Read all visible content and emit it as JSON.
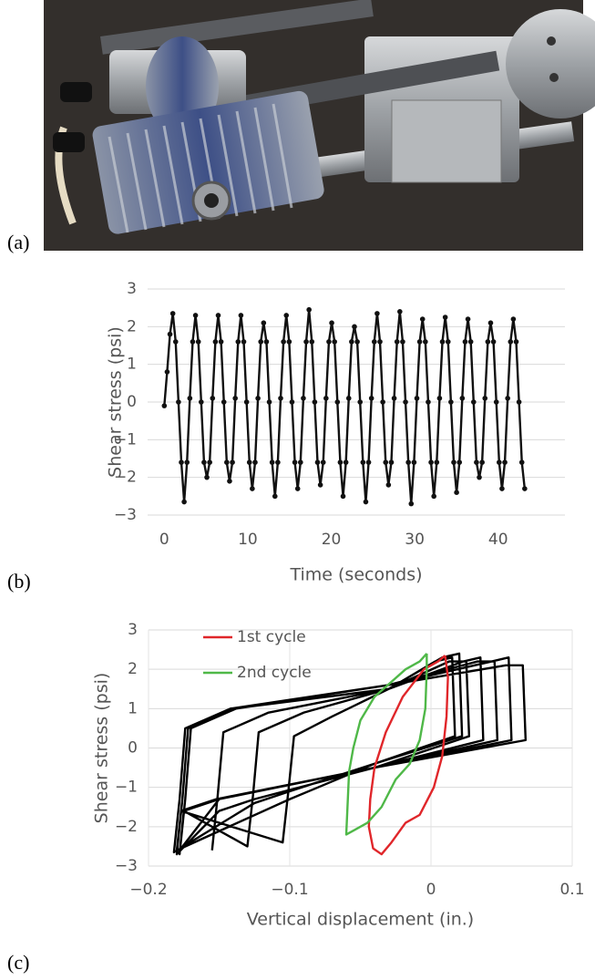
{
  "panel_labels": [
    "(a)",
    "(b)",
    "(c)"
  ],
  "chart_data": [
    {
      "type": "line",
      "y_label": "Shear stress (psi)",
      "x_label": "Time (seconds)",
      "xlim": [
        -2,
        48
      ],
      "xticks": [
        0,
        10,
        20,
        30,
        40
      ],
      "ylim": [
        -3,
        3
      ],
      "yticks": [
        {
          "value": -3,
          "label": "−3"
        },
        {
          "value": -2,
          "label": "−2"
        },
        {
          "value": -1,
          "label": "−1"
        },
        0,
        1,
        2,
        3
      ],
      "grid": [
        "y"
      ],
      "markers": true,
      "series": [
        {
          "color": "#111111",
          "x": [
            0,
            0.34,
            0.68,
            1.02,
            1.36,
            1.7,
            2.04,
            2.38,
            2.72,
            3.06,
            3.4,
            3.74,
            4.08,
            4.42,
            4.76,
            5.1,
            5.44,
            5.78,
            6.12,
            6.46,
            6.8,
            7.14,
            7.48,
            7.82,
            8.16,
            8.5,
            8.84,
            9.18,
            9.52,
            9.86,
            10.2,
            10.54,
            10.88,
            11.22,
            11.56,
            11.9,
            12.24,
            12.58,
            12.92,
            13.26,
            13.6,
            13.94,
            14.28,
            14.62,
            14.96,
            15.3,
            15.64,
            15.98,
            16.32,
            16.66,
            17,
            17.34,
            17.68,
            18.02,
            18.36,
            18.7,
            19.04,
            19.38,
            19.72,
            20.06,
            20.4,
            20.74,
            21.08,
            21.42,
            21.76,
            22.1,
            22.44,
            22.78,
            23.12,
            23.46,
            23.8,
            24.14,
            24.48,
            24.82,
            25.16,
            25.5,
            25.84,
            26.18,
            26.52,
            26.86,
            27.2,
            27.54,
            27.88,
            28.22,
            28.56,
            28.9,
            29.24,
            29.58,
            29.92,
            30.26,
            30.6,
            30.94,
            31.28,
            31.62,
            31.96,
            32.3,
            32.64,
            32.98,
            33.32,
            33.66,
            34,
            34.34,
            34.68,
            35.02,
            35.36,
            35.7,
            36.04,
            36.38,
            36.72,
            37.06,
            37.4,
            37.74,
            38.08,
            38.42,
            38.76,
            39.1,
            39.44,
            39.78,
            40.12,
            40.46,
            40.8,
            41.14,
            41.48,
            41.82,
            42.16,
            42.5,
            42.84,
            43.18
          ],
          "values": [
            -0.1,
            0.8,
            1.8,
            2.35,
            1.6,
            0,
            -1.6,
            -2.65,
            -1.6,
            0.1,
            1.6,
            2.3,
            1.6,
            0,
            -1.6,
            -2.0,
            -1.6,
            0.1,
            1.6,
            2.3,
            1.6,
            0,
            -1.6,
            -2.1,
            -1.6,
            0.1,
            1.6,
            2.3,
            1.6,
            0,
            -1.6,
            -2.3,
            -1.6,
            0.1,
            1.6,
            2.1,
            1.6,
            0,
            -1.6,
            -2.5,
            -1.6,
            0.1,
            1.6,
            2.3,
            1.6,
            0,
            -1.6,
            -2.3,
            -1.6,
            0.1,
            1.6,
            2.45,
            1.6,
            0,
            -1.6,
            -2.2,
            -1.6,
            0.1,
            1.6,
            2.1,
            1.6,
            0,
            -1.6,
            -2.5,
            -1.6,
            0.1,
            1.6,
            2.0,
            1.6,
            0,
            -1.6,
            -2.65,
            -1.6,
            0.1,
            1.6,
            2.35,
            1.6,
            0,
            -1.6,
            -2.2,
            -1.6,
            0.1,
            1.6,
            2.4,
            1.6,
            0,
            -1.6,
            -2.7,
            -1.6,
            0.1,
            1.6,
            2.2,
            1.6,
            0,
            -1.6,
            -2.5,
            -1.6,
            0.1,
            1.6,
            2.25,
            1.6,
            0,
            -1.6,
            -2.4,
            -1.6,
            0.1,
            1.6,
            2.2,
            1.6,
            0,
            -1.6,
            -2.0,
            -1.6,
            0.1,
            1.6,
            2.1,
            1.6,
            0,
            -1.6,
            -2.3,
            -1.6,
            0.1,
            1.6,
            2.2,
            1.6,
            0,
            -1.6,
            -2.3
          ]
        }
      ]
    },
    {
      "type": "line",
      "y_label": "Shear stress (psi)",
      "x_label": "Vertical displacement (in.)",
      "xlim": [
        -0.2,
        0.1
      ],
      "xticks": [
        {
          "value": -0.2,
          "label": "−0.2"
        },
        {
          "value": -0.1,
          "label": "−0.1"
        },
        0,
        0.1
      ],
      "ylim": [
        -3,
        3
      ],
      "yticks": [
        {
          "value": -3,
          "label": "−3"
        },
        {
          "value": -2,
          "label": "−2"
        },
        {
          "value": -1,
          "label": "−1"
        },
        0,
        1,
        2,
        3
      ],
      "grid": [
        "x",
        "y"
      ],
      "markers": false,
      "legend": "upper left",
      "series": [
        {
          "color": "#000000",
          "x": [
            -0.155,
            -0.151,
            -0.147,
            -0.115,
            -0.03,
            0.013,
            0.025,
            0.027,
            -0.04,
            -0.125,
            -0.15,
            -0.18,
            -0.176,
            -0.172,
            -0.14,
            -0.03,
            0.023,
            0.035,
            0.037,
            -0.04,
            -0.15,
            -0.175,
            -0.13,
            -0.126,
            -0.122,
            -0.09,
            -0.03,
            0.003,
            0.015,
            0.017,
            -0.04,
            -0.1,
            -0.125,
            -0.182,
            -0.178,
            -0.174,
            -0.142,
            -0.03,
            0.033,
            0.045,
            0.047,
            -0.04,
            -0.152,
            -0.177,
            -0.105,
            -0.101,
            -0.097,
            -0.07,
            -0.03,
            0.008,
            0.02,
            0.022,
            -0.04,
            -0.08,
            -0.1,
            -0.18,
            -0.176,
            -0.172,
            -0.14,
            -0.03,
            0.043,
            0.055,
            0.057,
            -0.04,
            -0.15,
            -0.175,
            -0.178,
            -0.174,
            -0.17,
            -0.138,
            -0.03,
            0.053,
            0.065,
            0.067,
            -0.04,
            -0.15,
            -0.178
          ],
          "values": [
            -2.6,
            -1.2,
            0.4,
            0.9,
            1.5,
            2.2,
            2.2,
            0.3,
            -0.5,
            -1.3,
            -1.6,
            -2.7,
            -1.3,
            0.5,
            1.0,
            1.5,
            2.2,
            2.3,
            0.2,
            -0.5,
            -1.3,
            -1.6,
            -2.5,
            -1.2,
            0.4,
            0.9,
            1.5,
            2.2,
            2.3,
            0.3,
            -0.4,
            -1.1,
            -1.4,
            -2.65,
            -1.3,
            0.5,
            1.0,
            1.6,
            2.2,
            2.2,
            0.2,
            -0.5,
            -1.3,
            -1.6,
            -2.4,
            -1.1,
            0.3,
            0.8,
            1.5,
            2.3,
            2.4,
            0.3,
            -0.4,
            -1.0,
            -1.3,
            -2.6,
            -1.3,
            0.5,
            1.0,
            1.6,
            2.2,
            2.3,
            0.2,
            -0.5,
            -1.3,
            -1.6,
            -2.7,
            -1.3,
            0.5,
            1.0,
            1.6,
            2.1,
            2.1,
            0.2,
            -0.5,
            -1.3,
            -2.6
          ]
        },
        {
          "name": "1st cycle",
          "color": "#e0262a",
          "x": [
            0.01,
            0.005,
            -0.005,
            -0.02,
            -0.032,
            -0.04,
            -0.043,
            -0.044,
            -0.041,
            -0.035,
            -0.028,
            -0.018,
            -0.008,
            0.002,
            0.008,
            0.011,
            0.012,
            0.01
          ],
          "values": [
            2.35,
            2.2,
            2.0,
            1.3,
            0.4,
            -0.5,
            -1.3,
            -2.0,
            -2.55,
            -2.7,
            -2.4,
            -1.9,
            -1.7,
            -1.0,
            -0.2,
            0.8,
            1.8,
            2.35
          ]
        },
        {
          "name": "2nd cycle",
          "color": "#4fb848",
          "x": [
            -0.003,
            -0.008,
            -0.018,
            -0.04,
            -0.05,
            -0.055,
            -0.058,
            -0.06,
            -0.055,
            -0.045,
            -0.035,
            -0.025,
            -0.015,
            -0.008,
            -0.004,
            -0.003,
            -0.003
          ],
          "values": [
            2.4,
            2.2,
            2.0,
            1.3,
            0.7,
            0,
            -0.6,
            -2.2,
            -2.1,
            -1.9,
            -1.5,
            -0.8,
            -0.4,
            0.2,
            1.0,
            2.0,
            2.4
          ]
        }
      ]
    }
  ]
}
